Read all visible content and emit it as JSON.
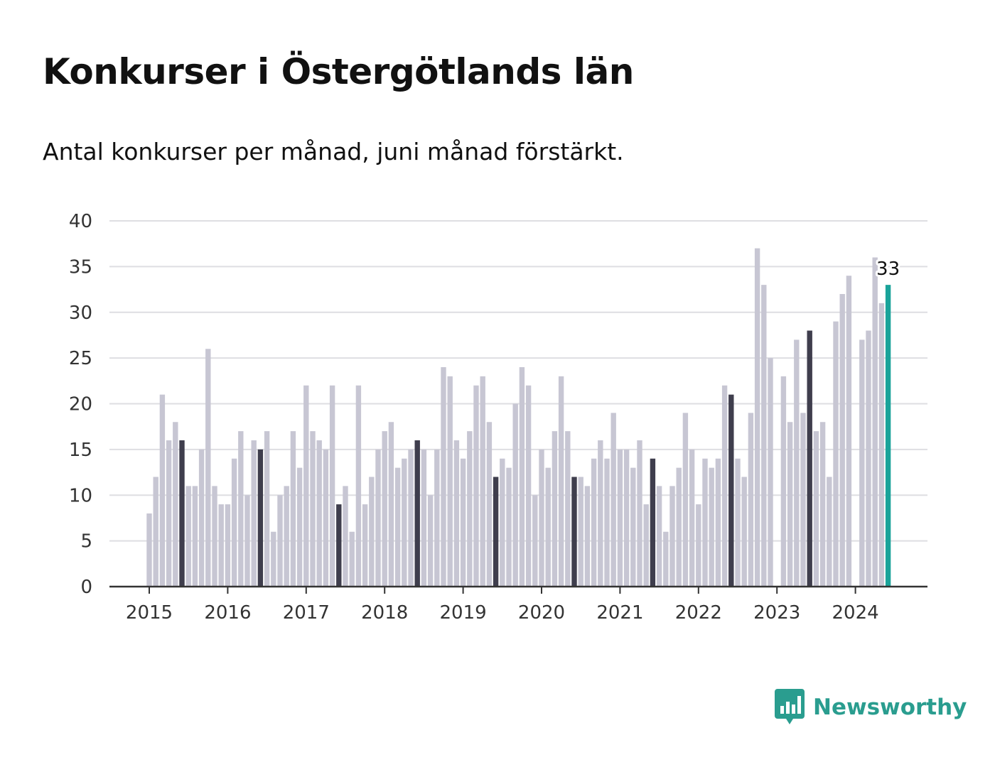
{
  "title": "Konkurser i Östergötlands län",
  "subtitle": "Antal konkurser per månad, juni månad förstärkt.",
  "brand": {
    "name": "Newsworthy",
    "icon": "newsworthy-logo-icon"
  },
  "chart_data": {
    "type": "bar",
    "title": "Konkurser i Östergötlands län",
    "subtitle": "Antal konkurser per månad, juni månad förstärkt.",
    "xlabel": "",
    "ylabel": "",
    "ylim": [
      0,
      40
    ],
    "yticks": [
      0,
      5,
      10,
      15,
      20,
      25,
      30,
      35,
      40
    ],
    "xticks": [
      "2015",
      "2016",
      "2017",
      "2018",
      "2019",
      "2020",
      "2021",
      "2022",
      "2023",
      "2024"
    ],
    "grid": true,
    "first_month": "2015-01",
    "values": [
      8,
      12,
      21,
      16,
      18,
      16,
      11,
      11,
      15,
      26,
      11,
      9,
      9,
      14,
      17,
      10,
      16,
      15,
      17,
      6,
      10,
      11,
      17,
      13,
      22,
      17,
      16,
      15,
      22,
      9,
      11,
      6,
      22,
      9,
      12,
      15,
      17,
      18,
      13,
      14,
      15,
      16,
      15,
      10,
      15,
      24,
      23,
      16,
      14,
      17,
      22,
      23,
      18,
      12,
      14,
      13,
      20,
      24,
      22,
      10,
      15,
      13,
      17,
      23,
      17,
      12,
      12,
      11,
      14,
      16,
      14,
      19,
      15,
      15,
      13,
      16,
      9,
      14,
      11,
      6,
      11,
      13,
      19,
      15,
      9,
      14,
      13,
      14,
      22,
      21,
      14,
      12,
      19,
      37,
      33,
      25,
      null,
      23,
      18,
      27,
      19,
      28,
      17,
      18,
      12,
      29,
      32,
      34,
      null,
      27,
      28,
      36,
      31,
      33
    ],
    "highlight_month": 6,
    "annotation": "33",
    "colors": {
      "bar": "#c7c6d3",
      "june": "#3f3e4d",
      "latest": "#1aa39a",
      "grid": "#dedee2",
      "axis": "#333333",
      "annotation": "#111111"
    }
  }
}
